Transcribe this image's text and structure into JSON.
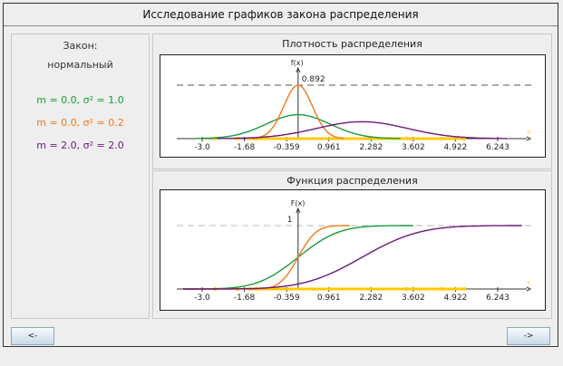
{
  "window": {
    "title": "Исследование графиков закона распределения"
  },
  "left_panel": {
    "law_label": "Закон:",
    "law_value": "нормальный",
    "params": [
      {
        "text": "m = 0.0,  σ² = 1.0",
        "color": "#1a9a3a",
        "m": 0.0,
        "var": 1.0
      },
      {
        "text": "m = 0.0,  σ² = 0.2",
        "color": "#f07a1a",
        "m": 0.0,
        "var": 0.2
      },
      {
        "text": "m = 2.0,  σ² = 2.0",
        "color": "#6a1a7a",
        "m": 2.0,
        "var": 2.0
      }
    ]
  },
  "buttons": {
    "prev": "<-",
    "next": "->"
  },
  "chart_data": [
    {
      "type": "line",
      "title": "Плотность распределения",
      "ylabel": "f(x)",
      "xlabel": "x",
      "x_ticks": [
        "-3.0",
        "-1.68",
        "-0.359",
        "0.961",
        "2.282",
        "3.602",
        "4.922",
        "6.243"
      ],
      "max_label": "0.892",
      "max_value": 0.892,
      "xlim": [
        -3.6,
        7.0
      ],
      "series": [
        {
          "function": "normal_pdf",
          "m": 0.0,
          "var": 1.0,
          "color": "#1a9a3a"
        },
        {
          "function": "normal_pdf",
          "m": 0.0,
          "var": 0.2,
          "color": "#f07a1a"
        },
        {
          "function": "normal_pdf",
          "m": 2.0,
          "var": 2.0,
          "color": "#6a1a7a"
        }
      ],
      "sample_color": "#ffc800"
    },
    {
      "type": "line",
      "title": "Функция распределения",
      "ylabel": "F(x)",
      "xlabel": "x",
      "x_ticks": [
        "-3.0",
        "-1.68",
        "-0.359",
        "0.961",
        "2.282",
        "3.602",
        "4.922",
        "6.243"
      ],
      "max_label": "1",
      "max_value": 1,
      "xlim": [
        -3.6,
        7.0
      ],
      "series": [
        {
          "function": "normal_cdf",
          "m": 0.0,
          "var": 1.0,
          "color": "#1a9a3a"
        },
        {
          "function": "normal_cdf",
          "m": 0.0,
          "var": 0.2,
          "color": "#f07a1a"
        },
        {
          "function": "normal_cdf",
          "m": 2.0,
          "var": 2.0,
          "color": "#6a1a7a"
        }
      ],
      "sample_color": "#ffc800"
    }
  ]
}
